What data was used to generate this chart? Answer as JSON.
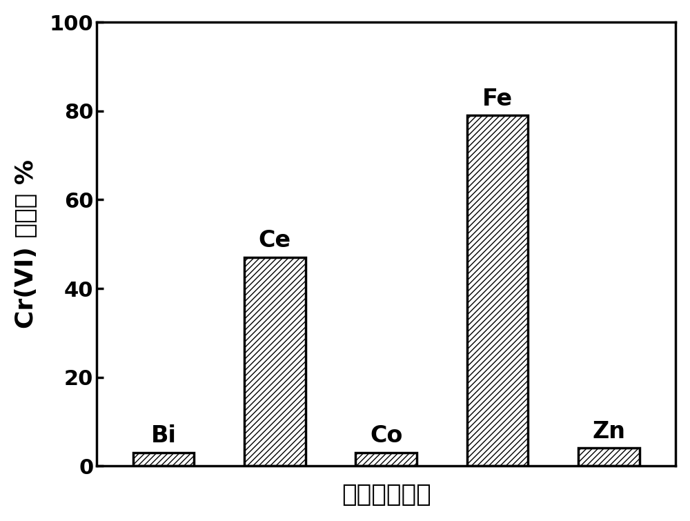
{
  "categories": [
    "Bi",
    "Ce",
    "Co",
    "Fe",
    "Zn"
  ],
  "values": [
    3.0,
    47.0,
    3.0,
    79.0,
    4.0
  ],
  "bar_color": "white",
  "bar_edgecolor": "black",
  "hatch": "////",
  "ylabel": "Cr(VI) 去除率 %",
  "xlabel": "中心金属原子",
  "ylim": [
    0,
    100
  ],
  "yticks": [
    0,
    20,
    40,
    60,
    80,
    100
  ],
  "bar_width": 0.55,
  "label_fontsize": 24,
  "axis_label_fontsize": 26,
  "tick_fontsize": 22,
  "background_color": "#ffffff",
  "linewidth": 2.5
}
